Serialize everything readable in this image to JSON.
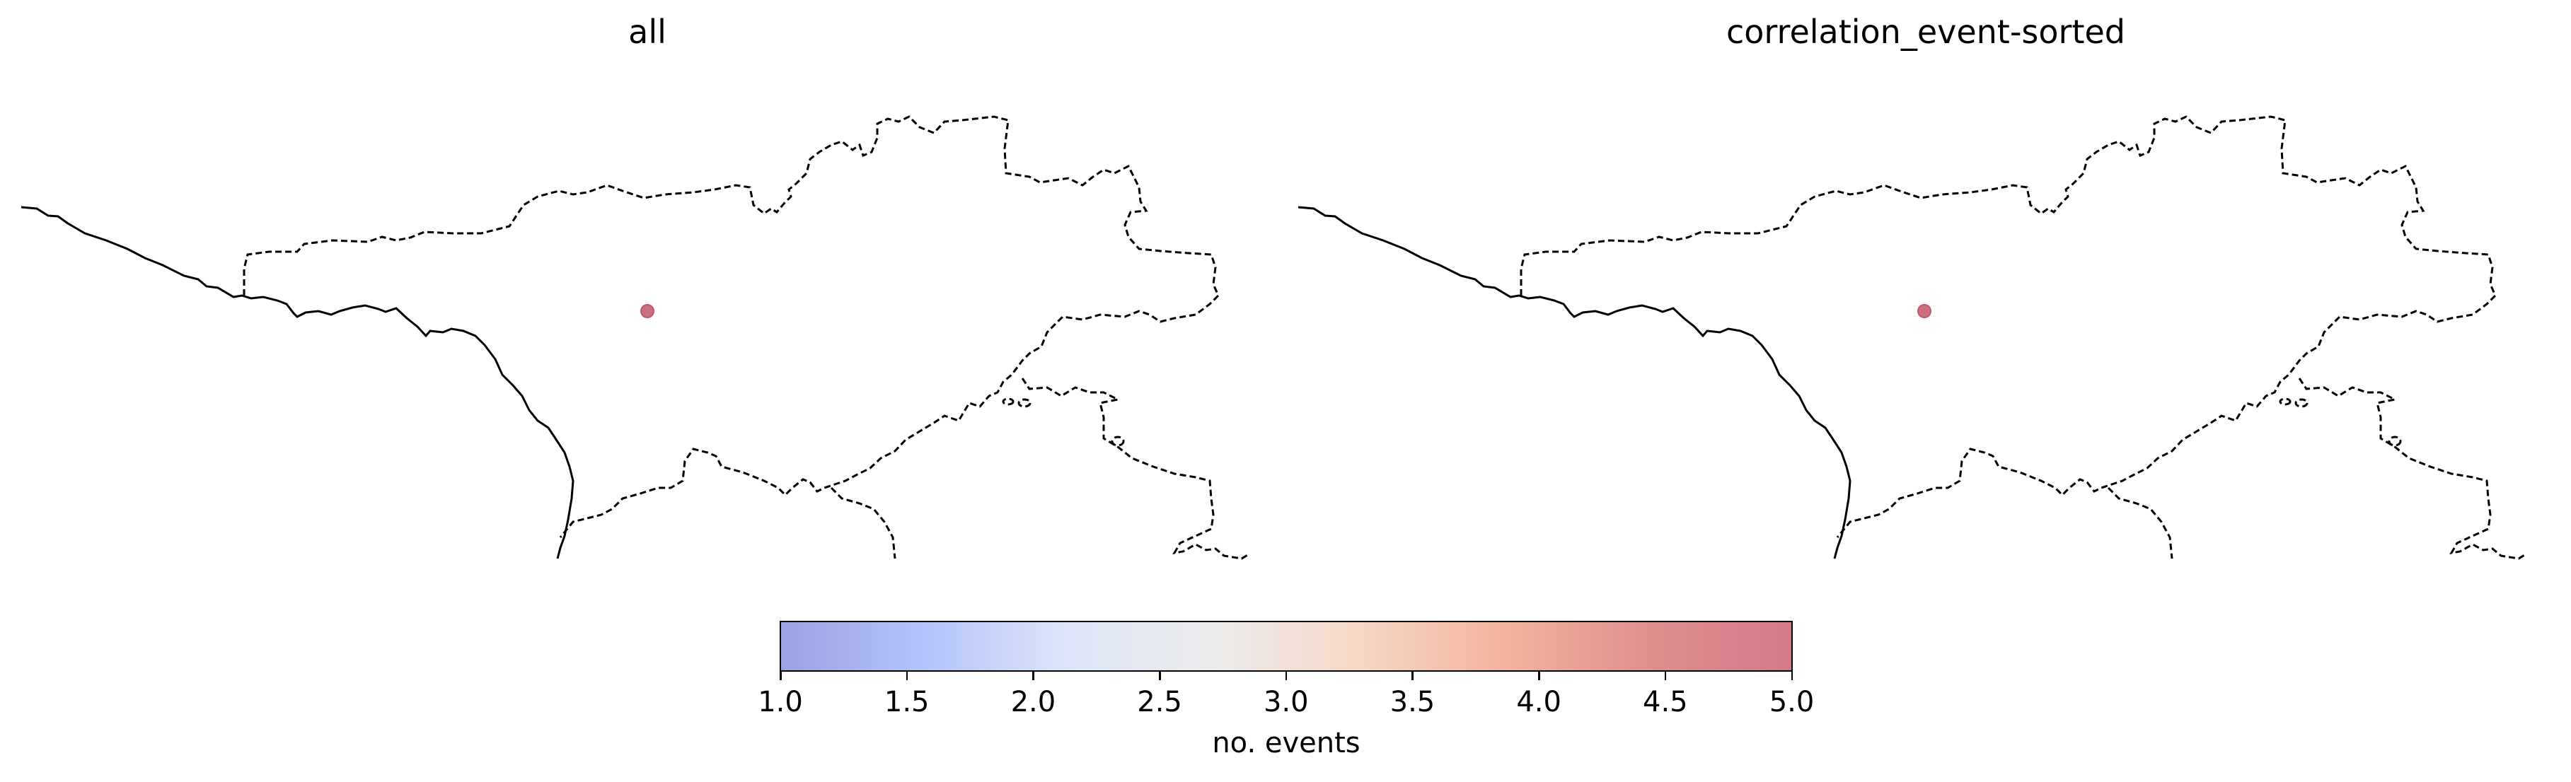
{
  "panels": [
    {
      "title": "all",
      "events": [
        {
          "count": 5
        }
      ]
    },
    {
      "title": "correlation_event-sorted",
      "events": [
        {
          "count": 5
        }
      ]
    }
  ],
  "colorbar": {
    "label": "no. events",
    "min": 1.0,
    "max": 5.0,
    "ticks": [
      "1.0",
      "1.5",
      "2.0",
      "2.5",
      "3.0",
      "3.5",
      "4.0",
      "4.5",
      "5.0"
    ],
    "colormap": [
      "#9aa2e0",
      "#b4c3fb",
      "#dde6f8",
      "#ececec",
      "#f6d7c6",
      "#f2b49e",
      "#e08f8f",
      "#d27a88"
    ]
  },
  "colors": {
    "event_marker": "#c0576a",
    "border": "#000000"
  }
}
